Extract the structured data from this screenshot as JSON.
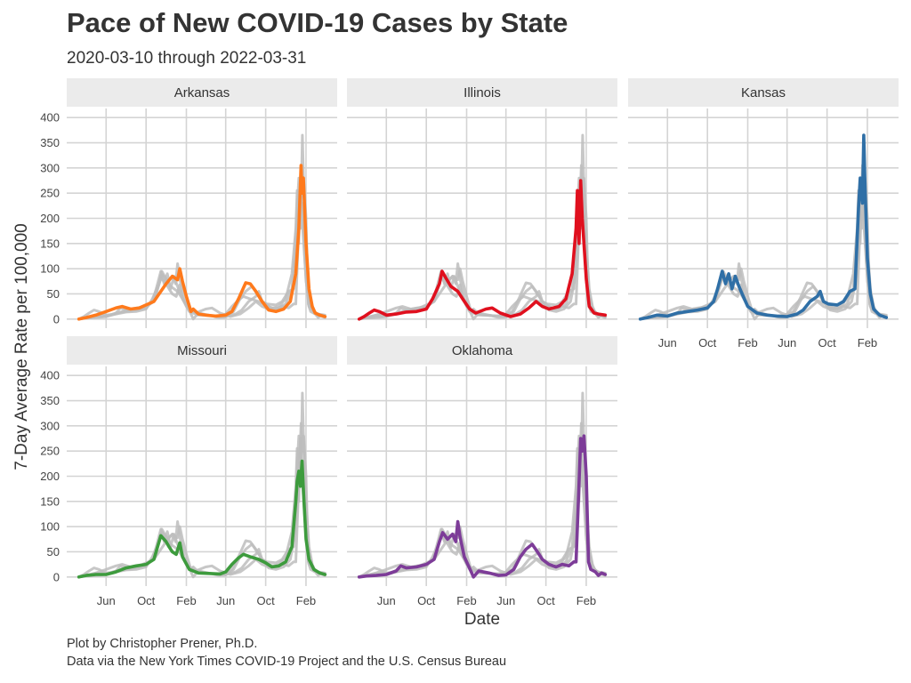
{
  "title": "Pace of New COVID-19 Cases by State",
  "subtitle": "2020-03-10 through 2022-03-31",
  "caption_line1": "Plot by Christopher Prener, Ph.D.",
  "caption_line2": "Data via the New York Times COVID-19 Project and the U.S. Census Bureau",
  "chart_data": {
    "type": "line",
    "facets": [
      "Arkansas",
      "Illinois",
      "Kansas",
      "Missouri",
      "Oklahoma"
    ],
    "xlabel": "Date",
    "ylabel": "7-Day Average Rate per 100,000",
    "ylim": [
      0,
      400
    ],
    "yticks": [
      0,
      50,
      100,
      150,
      200,
      250,
      300,
      350,
      400
    ],
    "xlim": [
      "2020-03-10",
      "2022-03-31"
    ],
    "xticks": [
      {
        "date": "2020-06-01",
        "label": "Jun"
      },
      {
        "date": "2020-10-01",
        "label": "Oct"
      },
      {
        "date": "2021-02-01",
        "label": "Feb"
      },
      {
        "date": "2021-06-01",
        "label": "Jun"
      },
      {
        "date": "2021-10-01",
        "label": "Oct"
      },
      {
        "date": "2022-02-01",
        "label": "Feb"
      }
    ],
    "background_color": "#bdbdbd",
    "series": [
      {
        "name": "Arkansas",
        "color": "#ff7a1c",
        "points": [
          [
            "2020-03-10",
            0
          ],
          [
            "2020-04-01",
            3
          ],
          [
            "2020-05-01",
            8
          ],
          [
            "2020-06-01",
            15
          ],
          [
            "2020-07-01",
            22
          ],
          [
            "2020-07-20",
            25
          ],
          [
            "2020-08-15",
            20
          ],
          [
            "2020-09-10",
            22
          ],
          [
            "2020-10-01",
            28
          ],
          [
            "2020-10-25",
            35
          ],
          [
            "2020-11-15",
            55
          ],
          [
            "2020-12-01",
            70
          ],
          [
            "2020-12-20",
            85
          ],
          [
            "2021-01-05",
            78
          ],
          [
            "2021-01-12",
            100
          ],
          [
            "2021-01-20",
            75
          ],
          [
            "2021-02-01",
            45
          ],
          [
            "2021-02-08",
            30
          ],
          [
            "2021-02-15",
            15
          ],
          [
            "2021-02-22",
            20
          ],
          [
            "2021-03-10",
            10
          ],
          [
            "2021-04-01",
            8
          ],
          [
            "2021-05-01",
            6
          ],
          [
            "2021-06-01",
            8
          ],
          [
            "2021-06-20",
            15
          ],
          [
            "2021-07-10",
            40
          ],
          [
            "2021-08-01",
            72
          ],
          [
            "2021-08-15",
            70
          ],
          [
            "2021-09-01",
            55
          ],
          [
            "2021-09-20",
            35
          ],
          [
            "2021-10-10",
            18
          ],
          [
            "2021-11-01",
            15
          ],
          [
            "2021-11-25",
            20
          ],
          [
            "2021-12-15",
            35
          ],
          [
            "2022-01-01",
            90
          ],
          [
            "2022-01-10",
            180
          ],
          [
            "2022-01-17",
            305
          ],
          [
            "2022-01-20",
            250
          ],
          [
            "2022-01-24",
            280
          ],
          [
            "2022-02-01",
            150
          ],
          [
            "2022-02-10",
            60
          ],
          [
            "2022-02-20",
            25
          ],
          [
            "2022-03-01",
            12
          ],
          [
            "2022-03-15",
            8
          ],
          [
            "2022-03-31",
            5
          ]
        ]
      },
      {
        "name": "Illinois",
        "color": "#e0101e",
        "points": [
          [
            "2020-03-10",
            0
          ],
          [
            "2020-03-25",
            5
          ],
          [
            "2020-04-10",
            12
          ],
          [
            "2020-04-25",
            18
          ],
          [
            "2020-05-10",
            15
          ],
          [
            "2020-06-01",
            8
          ],
          [
            "2020-07-01",
            10
          ],
          [
            "2020-08-01",
            14
          ],
          [
            "2020-09-01",
            15
          ],
          [
            "2020-10-01",
            20
          ],
          [
            "2020-10-20",
            40
          ],
          [
            "2020-11-10",
            70
          ],
          [
            "2020-11-18",
            95
          ],
          [
            "2020-12-01",
            80
          ],
          [
            "2020-12-15",
            65
          ],
          [
            "2021-01-05",
            55
          ],
          [
            "2021-01-20",
            40
          ],
          [
            "2021-02-10",
            20
          ],
          [
            "2021-03-01",
            12
          ],
          [
            "2021-04-01",
            20
          ],
          [
            "2021-04-20",
            22
          ],
          [
            "2021-05-15",
            12
          ],
          [
            "2021-06-15",
            5
          ],
          [
            "2021-07-15",
            10
          ],
          [
            "2021-08-10",
            22
          ],
          [
            "2021-09-01",
            35
          ],
          [
            "2021-09-20",
            25
          ],
          [
            "2021-10-10",
            20
          ],
          [
            "2021-11-10",
            25
          ],
          [
            "2021-12-01",
            40
          ],
          [
            "2021-12-20",
            90
          ],
          [
            "2022-01-01",
            180
          ],
          [
            "2022-01-05",
            255
          ],
          [
            "2022-01-10",
            150
          ],
          [
            "2022-01-15",
            275
          ],
          [
            "2022-01-20",
            200
          ],
          [
            "2022-02-01",
            80
          ],
          [
            "2022-02-10",
            25
          ],
          [
            "2022-02-25",
            12
          ],
          [
            "2022-03-10",
            10
          ],
          [
            "2022-03-31",
            8
          ]
        ]
      },
      {
        "name": "Kansas",
        "color": "#2f6fa6",
        "points": [
          [
            "2020-03-10",
            0
          ],
          [
            "2020-04-01",
            3
          ],
          [
            "2020-05-01",
            8
          ],
          [
            "2020-06-01",
            6
          ],
          [
            "2020-07-01",
            12
          ],
          [
            "2020-08-01",
            15
          ],
          [
            "2020-09-01",
            18
          ],
          [
            "2020-10-01",
            22
          ],
          [
            "2020-10-20",
            35
          ],
          [
            "2020-11-01",
            60
          ],
          [
            "2020-11-15",
            95
          ],
          [
            "2020-11-25",
            70
          ],
          [
            "2020-12-05",
            90
          ],
          [
            "2020-12-15",
            60
          ],
          [
            "2020-12-25",
            85
          ],
          [
            "2021-01-05",
            65
          ],
          [
            "2021-01-15",
            50
          ],
          [
            "2021-02-01",
            25
          ],
          [
            "2021-03-01",
            12
          ],
          [
            "2021-04-01",
            8
          ],
          [
            "2021-05-01",
            6
          ],
          [
            "2021-06-01",
            5
          ],
          [
            "2021-07-01",
            10
          ],
          [
            "2021-07-20",
            18
          ],
          [
            "2021-08-10",
            35
          ],
          [
            "2021-09-01",
            45
          ],
          [
            "2021-09-10",
            55
          ],
          [
            "2021-09-20",
            35
          ],
          [
            "2021-10-05",
            30
          ],
          [
            "2021-11-01",
            28
          ],
          [
            "2021-11-20",
            35
          ],
          [
            "2021-12-10",
            55
          ],
          [
            "2021-12-25",
            60
          ],
          [
            "2022-01-05",
            220
          ],
          [
            "2022-01-10",
            280
          ],
          [
            "2022-01-17",
            230
          ],
          [
            "2022-01-21",
            365
          ],
          [
            "2022-01-25",
            260
          ],
          [
            "2022-02-01",
            120
          ],
          [
            "2022-02-10",
            50
          ],
          [
            "2022-02-20",
            20
          ],
          [
            "2022-03-10",
            8
          ],
          [
            "2022-03-31",
            3
          ]
        ]
      },
      {
        "name": "Missouri",
        "color": "#3d9b3d",
        "points": [
          [
            "2020-03-10",
            0
          ],
          [
            "2020-04-01",
            3
          ],
          [
            "2020-05-01",
            5
          ],
          [
            "2020-06-01",
            5
          ],
          [
            "2020-07-01",
            10
          ],
          [
            "2020-08-01",
            18
          ],
          [
            "2020-09-01",
            22
          ],
          [
            "2020-10-01",
            25
          ],
          [
            "2020-10-25",
            35
          ],
          [
            "2020-11-15",
            82
          ],
          [
            "2020-12-01",
            70
          ],
          [
            "2020-12-10",
            60
          ],
          [
            "2020-12-20",
            50
          ],
          [
            "2021-01-01",
            45
          ],
          [
            "2021-01-12",
            68
          ],
          [
            "2021-01-20",
            40
          ],
          [
            "2021-02-10",
            15
          ],
          [
            "2021-03-10",
            8
          ],
          [
            "2021-04-10",
            7
          ],
          [
            "2021-05-15",
            6
          ],
          [
            "2021-06-01",
            10
          ],
          [
            "2021-06-20",
            25
          ],
          [
            "2021-07-10",
            38
          ],
          [
            "2021-07-25",
            45
          ],
          [
            "2021-08-15",
            40
          ],
          [
            "2021-09-10",
            35
          ],
          [
            "2021-10-01",
            28
          ],
          [
            "2021-10-20",
            20
          ],
          [
            "2021-11-10",
            22
          ],
          [
            "2021-12-01",
            30
          ],
          [
            "2021-12-20",
            60
          ],
          [
            "2022-01-01",
            150
          ],
          [
            "2022-01-05",
            190
          ],
          [
            "2022-01-10",
            210
          ],
          [
            "2022-01-15",
            180
          ],
          [
            "2022-01-20",
            230
          ],
          [
            "2022-01-25",
            160
          ],
          [
            "2022-02-01",
            75
          ],
          [
            "2022-02-10",
            35
          ],
          [
            "2022-02-25",
            15
          ],
          [
            "2022-03-15",
            8
          ],
          [
            "2022-03-31",
            5
          ]
        ]
      },
      {
        "name": "Oklahoma",
        "color": "#7d3c98",
        "points": [
          [
            "2020-03-10",
            0
          ],
          [
            "2020-04-01",
            2
          ],
          [
            "2020-05-01",
            3
          ],
          [
            "2020-06-01",
            5
          ],
          [
            "2020-07-01",
            12
          ],
          [
            "2020-07-15",
            22
          ],
          [
            "2020-08-01",
            18
          ],
          [
            "2020-09-01",
            20
          ],
          [
            "2020-10-01",
            25
          ],
          [
            "2020-10-25",
            35
          ],
          [
            "2020-11-10",
            70
          ],
          [
            "2020-11-20",
            88
          ],
          [
            "2020-12-05",
            75
          ],
          [
            "2020-12-20",
            85
          ],
          [
            "2020-12-30",
            70
          ],
          [
            "2021-01-05",
            110
          ],
          [
            "2021-01-12",
            80
          ],
          [
            "2021-01-25",
            40
          ],
          [
            "2021-02-15",
            10
          ],
          [
            "2021-02-22",
            0
          ],
          [
            "2021-03-10",
            12
          ],
          [
            "2021-04-10",
            8
          ],
          [
            "2021-05-10",
            3
          ],
          [
            "2021-06-01",
            4
          ],
          [
            "2021-06-25",
            15
          ],
          [
            "2021-07-15",
            40
          ],
          [
            "2021-08-01",
            55
          ],
          [
            "2021-08-20",
            65
          ],
          [
            "2021-09-05",
            50
          ],
          [
            "2021-09-20",
            35
          ],
          [
            "2021-10-10",
            25
          ],
          [
            "2021-11-01",
            20
          ],
          [
            "2021-11-20",
            25
          ],
          [
            "2021-12-10",
            22
          ],
          [
            "2021-12-25",
            30
          ],
          [
            "2022-01-01",
            30
          ],
          [
            "2022-01-08",
            150
          ],
          [
            "2022-01-15",
            275
          ],
          [
            "2022-01-20",
            250
          ],
          [
            "2022-01-25",
            280
          ],
          [
            "2022-02-01",
            200
          ],
          [
            "2022-02-08",
            30
          ],
          [
            "2022-02-15",
            15
          ],
          [
            "2022-03-01",
            10
          ],
          [
            "2022-03-10",
            3
          ],
          [
            "2022-03-20",
            8
          ],
          [
            "2022-03-31",
            5
          ]
        ]
      }
    ]
  }
}
